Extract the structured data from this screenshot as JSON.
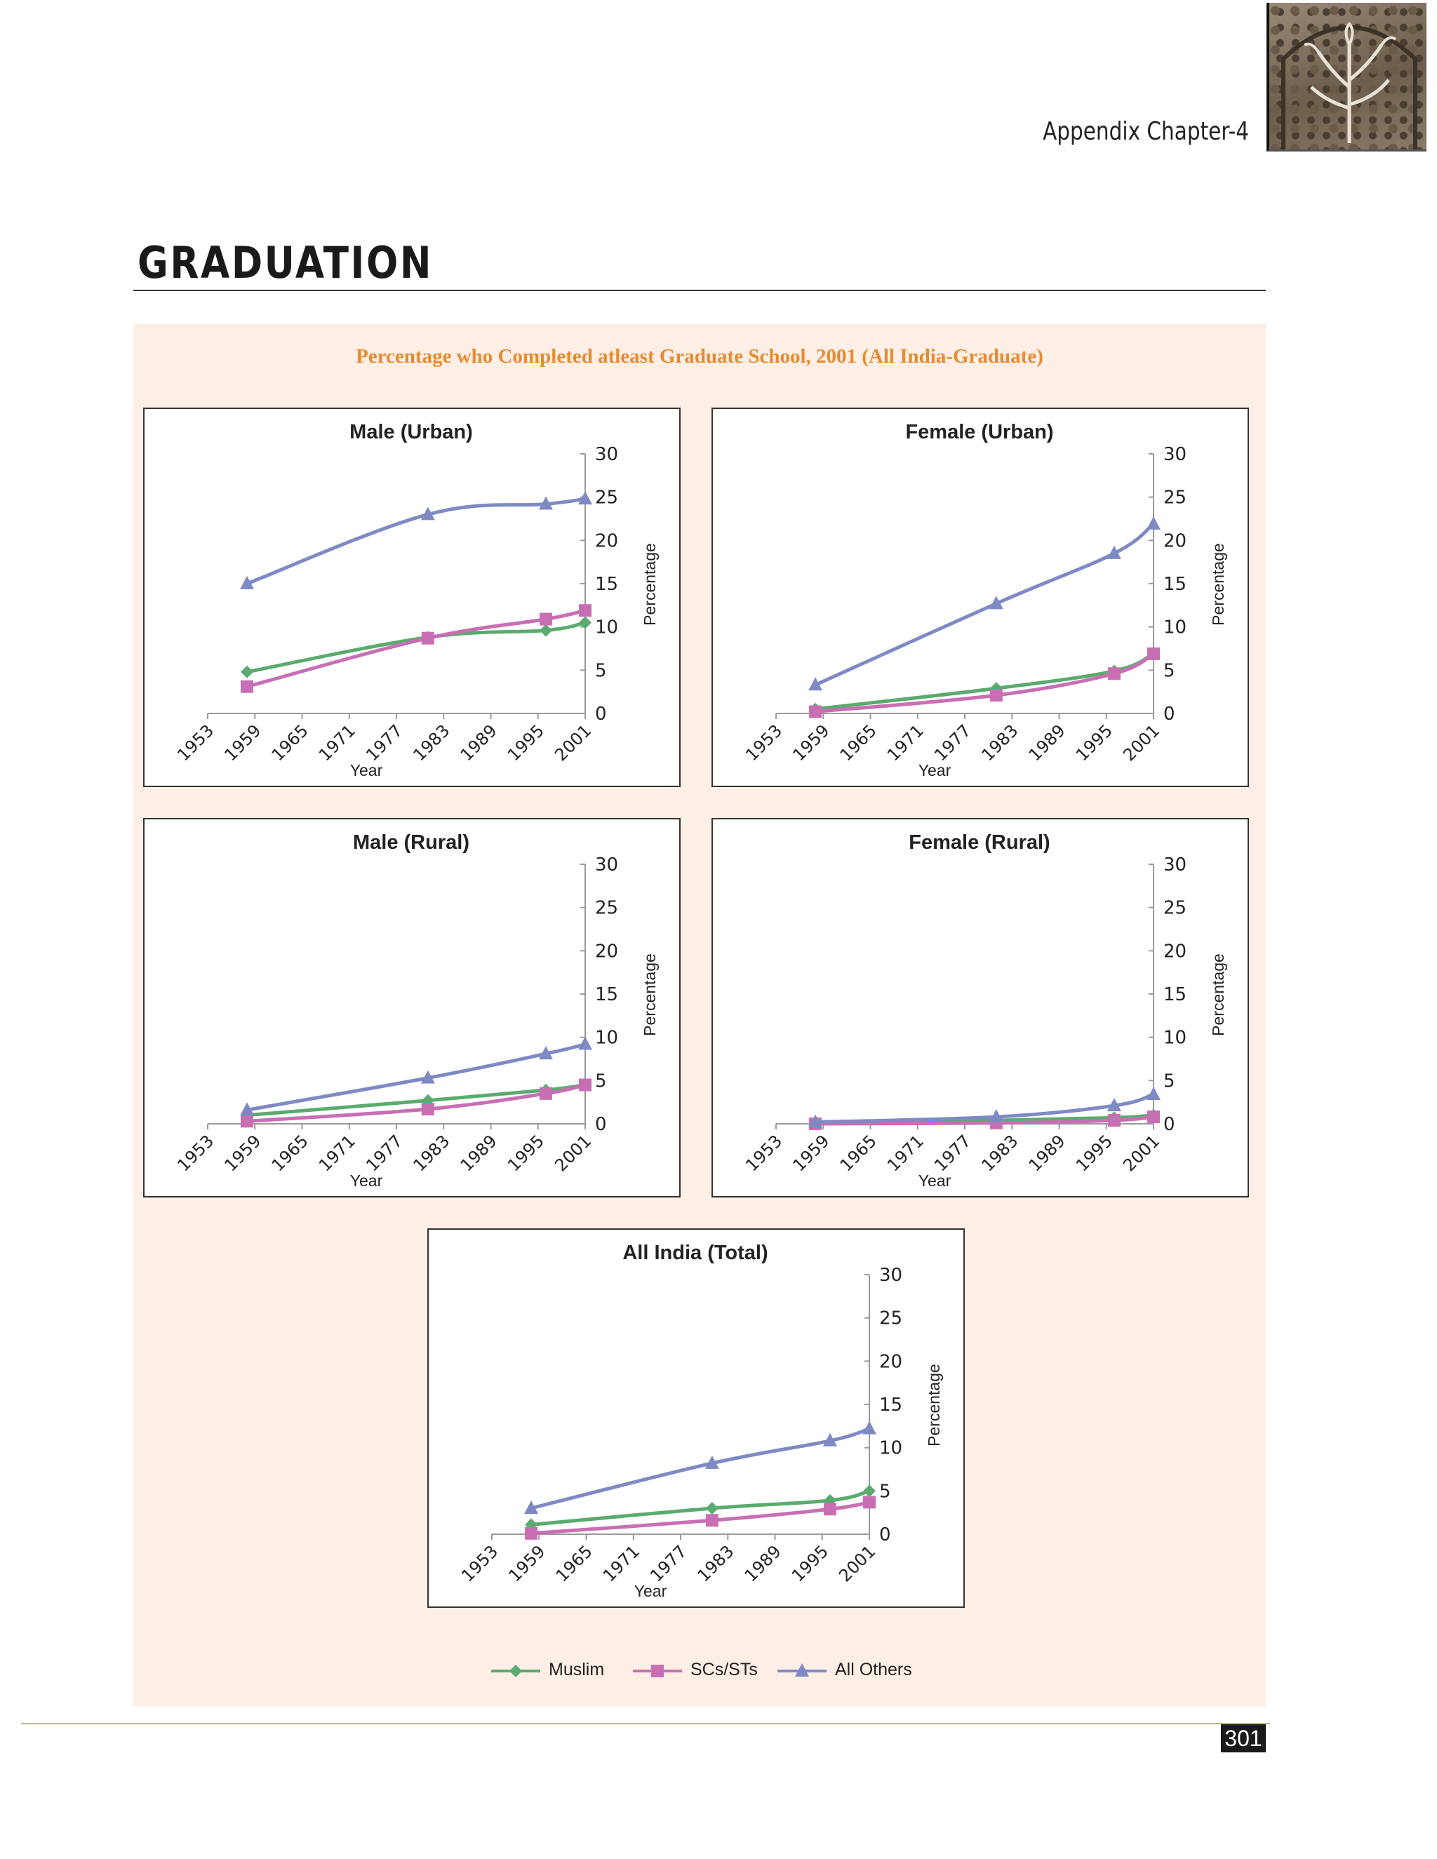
{
  "header": {
    "appendix_label": "Appendix Chapter-4",
    "corner_image": "lattice-window-photo"
  },
  "section_title": "GRADUATION",
  "main_caption": "Percentage who Completed atleast Graduate School, 2001 (All India-Graduate)",
  "series_styles": [
    {
      "name": "Muslim",
      "color": "#5aab6e",
      "marker": "diamond"
    },
    {
      "name": "SCs/STs",
      "color": "#c86fb4",
      "marker": "square"
    },
    {
      "name": "All Others",
      "color": "#7f8ac4",
      "marker": "triangle"
    }
  ],
  "chart_data": [
    {
      "type": "line",
      "title": "Male (Urban)",
      "xlabel": "Year",
      "ylabel": "Percentage",
      "x_ticks": [
        "1953",
        "1959",
        "1965",
        "1971",
        "1977",
        "1983",
        "1989",
        "1995",
        "2001"
      ],
      "xlim": [
        1953,
        2001
      ],
      "ylim": [
        0,
        30
      ],
      "y_ticks": [
        "0",
        "5",
        "10",
        "15",
        "20",
        "25",
        "30"
      ],
      "y_axis_position": "right",
      "x": [
        1958,
        1981,
        1996,
        2001
      ],
      "series": [
        {
          "name": "Muslim",
          "values": [
            4.8,
            8.8,
            9.6,
            10.5
          ]
        },
        {
          "name": "SCs/STs",
          "values": [
            3.1,
            8.7,
            10.9,
            11.9
          ]
        },
        {
          "name": "All Others",
          "values": [
            15.0,
            23.0,
            24.2,
            24.8
          ]
        }
      ]
    },
    {
      "type": "line",
      "title": "Female (Urban)",
      "xlabel": "Year",
      "ylabel": "Percentage",
      "x_ticks": [
        "1953",
        "1959",
        "1965",
        "1971",
        "1977",
        "1983",
        "1989",
        "1995",
        "2001"
      ],
      "xlim": [
        1953,
        2001
      ],
      "ylim": [
        0,
        30
      ],
      "y_ticks": [
        "0",
        "5",
        "10",
        "15",
        "20",
        "25",
        "30"
      ],
      "y_axis_position": "right",
      "x": [
        1958,
        1981,
        1996,
        2001
      ],
      "series": [
        {
          "name": "Muslim",
          "values": [
            0.5,
            2.9,
            4.9,
            6.9
          ]
        },
        {
          "name": "SCs/STs",
          "values": [
            0.2,
            2.1,
            4.6,
            6.9
          ]
        },
        {
          "name": "All Others",
          "values": [
            3.3,
            12.7,
            18.5,
            21.9
          ]
        }
      ]
    },
    {
      "type": "line",
      "title": "Male (Rural)",
      "xlabel": "Year",
      "ylabel": "Percentage",
      "x_ticks": [
        "1953",
        "1959",
        "1965",
        "1971",
        "1977",
        "1983",
        "1989",
        "1995",
        "2001"
      ],
      "xlim": [
        1953,
        2001
      ],
      "ylim": [
        0,
        30
      ],
      "y_ticks": [
        "0",
        "5",
        "10",
        "15",
        "20",
        "25",
        "30"
      ],
      "y_axis_position": "right",
      "x": [
        1958,
        1981,
        1996,
        2001
      ],
      "series": [
        {
          "name": "Muslim",
          "values": [
            1.0,
            2.7,
            3.9,
            4.5
          ]
        },
        {
          "name": "SCs/STs",
          "values": [
            0.3,
            1.7,
            3.5,
            4.5
          ]
        },
        {
          "name": "All Others",
          "values": [
            1.6,
            5.3,
            8.1,
            9.2
          ]
        }
      ]
    },
    {
      "type": "line",
      "title": "Female (Rural)",
      "xlabel": "Year",
      "ylabel": "Percentage",
      "x_ticks": [
        "1953",
        "1959",
        "1965",
        "1971",
        "1977",
        "1983",
        "1989",
        "1995",
        "2001"
      ],
      "xlim": [
        1953,
        2001
      ],
      "ylim": [
        0,
        30
      ],
      "y_ticks": [
        "0",
        "5",
        "10",
        "15",
        "20",
        "25",
        "30"
      ],
      "y_axis_position": "right",
      "x": [
        1958,
        1981,
        1996,
        2001
      ],
      "series": [
        {
          "name": "Muslim",
          "values": [
            0.1,
            0.4,
            0.7,
            1.0
          ]
        },
        {
          "name": "SCs/STs",
          "values": [
            0.0,
            0.1,
            0.4,
            0.8
          ]
        },
        {
          "name": "All Others",
          "values": [
            0.2,
            0.8,
            2.1,
            3.4
          ]
        }
      ]
    },
    {
      "type": "line",
      "title": "All India (Total)",
      "xlabel": "Year",
      "ylabel": "Percentage",
      "x_ticks": [
        "1953",
        "1959",
        "1965",
        "1971",
        "1977",
        "1983",
        "1989",
        "1995",
        "2001"
      ],
      "xlim": [
        1953,
        2001
      ],
      "ylim": [
        0,
        30
      ],
      "y_ticks": [
        "0",
        "5",
        "10",
        "15",
        "20",
        "25",
        "30"
      ],
      "y_axis_position": "right",
      "x": [
        1958,
        1981,
        1996,
        2001
      ],
      "series": [
        {
          "name": "Muslim",
          "values": [
            1.1,
            3.0,
            3.9,
            5.0
          ]
        },
        {
          "name": "SCs/STs",
          "values": [
            0.1,
            1.6,
            2.9,
            3.7
          ]
        },
        {
          "name": "All Others",
          "values": [
            3.0,
            8.2,
            10.8,
            12.2
          ]
        }
      ]
    }
  ],
  "legend": {
    "placement": "bottom-center",
    "items": [
      "Muslim",
      "SCs/STs",
      "All Others"
    ]
  },
  "footer": {
    "page_number": "301"
  }
}
